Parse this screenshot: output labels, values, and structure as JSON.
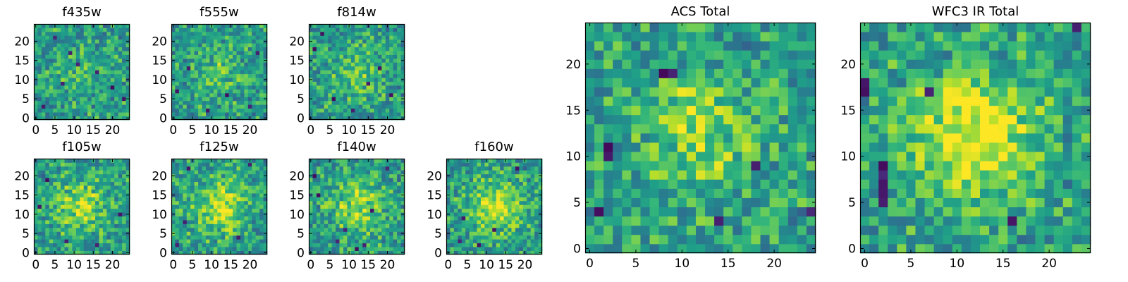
{
  "chart_data": [
    {
      "id": "f435w",
      "type": "heatmap",
      "title": "f435w",
      "size": 25,
      "xticks": [
        0,
        5,
        10,
        15,
        20
      ],
      "yticks": [
        0,
        5,
        10,
        15,
        20
      ],
      "vmin": 0,
      "vmax": 1,
      "colormap": "viridis",
      "seed": 11,
      "blob": 0.1,
      "hot": [],
      "cold": [
        [
          9,
          17
        ],
        [
          11,
          14
        ],
        [
          7,
          9
        ],
        [
          16,
          12
        ],
        [
          2,
          3
        ],
        [
          20,
          8
        ],
        [
          23,
          5
        ],
        [
          5,
          21
        ]
      ]
    },
    {
      "id": "f555w",
      "type": "heatmap",
      "title": "f555w",
      "size": 25,
      "xticks": [
        0,
        5,
        10,
        15,
        20
      ],
      "yticks": [
        0,
        5,
        10,
        15,
        20
      ],
      "vmin": 0,
      "vmax": 1,
      "colormap": "viridis",
      "seed": 23,
      "blob": 0.15,
      "hot": [],
      "cold": [
        [
          4,
          13
        ],
        [
          1,
          7
        ],
        [
          14,
          6
        ],
        [
          20,
          3
        ],
        [
          9,
          2
        ],
        [
          22,
          17
        ]
      ]
    },
    {
      "id": "f814w",
      "type": "heatmap",
      "title": "f814w",
      "size": 25,
      "xticks": [
        0,
        5,
        10,
        15,
        20
      ],
      "yticks": [
        0,
        5,
        10,
        15,
        20
      ],
      "vmin": 0,
      "vmax": 1,
      "colormap": "viridis",
      "seed": 37,
      "blob": 0.2,
      "hot": [],
      "cold": [
        [
          1,
          18
        ],
        [
          6,
          5
        ],
        [
          11,
          2
        ],
        [
          15,
          9
        ],
        [
          18,
          13
        ],
        [
          3,
          22
        ],
        [
          21,
          6
        ]
      ]
    },
    {
      "id": "f105w",
      "type": "heatmap",
      "title": "f105w",
      "size": 25,
      "xticks": [
        0,
        5,
        10,
        15,
        20
      ],
      "yticks": [
        0,
        5,
        10,
        15,
        20
      ],
      "vmin": 0,
      "vmax": 1,
      "colormap": "viridis",
      "seed": 41,
      "blob": 0.3,
      "hot": [],
      "cold": [
        [
          3,
          19
        ],
        [
          1,
          12
        ],
        [
          8,
          3
        ],
        [
          16,
          2
        ],
        [
          22,
          10
        ]
      ]
    },
    {
      "id": "f125w",
      "type": "heatmap",
      "title": "f125w",
      "size": 25,
      "xticks": [
        0,
        5,
        10,
        15,
        20
      ],
      "yticks": [
        0,
        5,
        10,
        15,
        20
      ],
      "vmin": 0,
      "vmax": 1,
      "colormap": "viridis",
      "seed": 53,
      "blob": 0.35,
      "hot": [],
      "cold": [
        [
          3,
          8
        ],
        [
          1,
          2
        ],
        [
          4,
          22
        ],
        [
          20,
          23
        ],
        [
          17,
          4
        ]
      ]
    },
    {
      "id": "f140w",
      "type": "heatmap",
      "title": "f140w",
      "size": 25,
      "xticks": [
        0,
        5,
        10,
        15,
        20
      ],
      "yticks": [
        0,
        5,
        10,
        15,
        20
      ],
      "vmin": 0,
      "vmax": 1,
      "colormap": "viridis",
      "seed": 67,
      "blob": 0.3,
      "hot": [],
      "cold": [
        [
          1,
          20
        ],
        [
          2,
          15
        ],
        [
          7,
          3
        ],
        [
          9,
          6
        ],
        [
          12,
          1
        ],
        [
          16,
          11
        ],
        [
          20,
          22
        ],
        [
          14,
          2
        ]
      ]
    },
    {
      "id": "f160w",
      "type": "heatmap",
      "title": "f160w",
      "size": 25,
      "xticks": [
        0,
        5,
        10,
        15,
        20
      ],
      "yticks": [
        0,
        5,
        10,
        15,
        20
      ],
      "vmin": 0,
      "vmax": 1,
      "colormap": "viridis",
      "seed": 79,
      "blob": 0.35,
      "hot": [],
      "cold": [
        [
          4,
          9
        ],
        [
          12,
          6
        ],
        [
          3,
          3
        ],
        [
          8,
          2
        ],
        [
          18,
          22
        ]
      ]
    },
    {
      "id": "acs-total",
      "type": "heatmap",
      "title": "ACS Total",
      "size": 25,
      "xticks": [
        0,
        5,
        10,
        15,
        20
      ],
      "yticks": [
        0,
        5,
        10,
        15,
        20
      ],
      "vmin": 0,
      "vmax": 1,
      "colormap": "viridis",
      "seed": 97,
      "blob": 0.25,
      "hot": [
        [
          11,
          17
        ],
        [
          13,
          16
        ],
        [
          12,
          8
        ],
        [
          10,
          17
        ],
        [
          14,
          9
        ]
      ],
      "cold": [
        [
          8,
          19
        ],
        [
          9,
          19
        ],
        [
          2,
          10
        ],
        [
          2,
          11
        ],
        [
          1,
          4
        ],
        [
          14,
          3
        ],
        [
          18,
          9
        ],
        [
          24,
          4
        ]
      ]
    },
    {
      "id": "wfc3-ir-total",
      "type": "heatmap",
      "title": "WFC3 IR Total",
      "size": 25,
      "xticks": [
        0,
        5,
        10,
        15,
        20
      ],
      "yticks": [
        0,
        5,
        10,
        15,
        20
      ],
      "vmin": 0,
      "vmax": 1,
      "colormap": "viridis",
      "seed": 113,
      "blob": 0.45,
      "hot": [],
      "cold": [
        [
          2,
          5
        ],
        [
          2,
          6
        ],
        [
          2,
          7
        ],
        [
          2,
          8
        ],
        [
          2,
          9
        ],
        [
          0,
          17
        ],
        [
          0,
          18
        ],
        [
          7,
          17
        ],
        [
          16,
          3
        ],
        [
          23,
          24
        ]
      ]
    }
  ]
}
